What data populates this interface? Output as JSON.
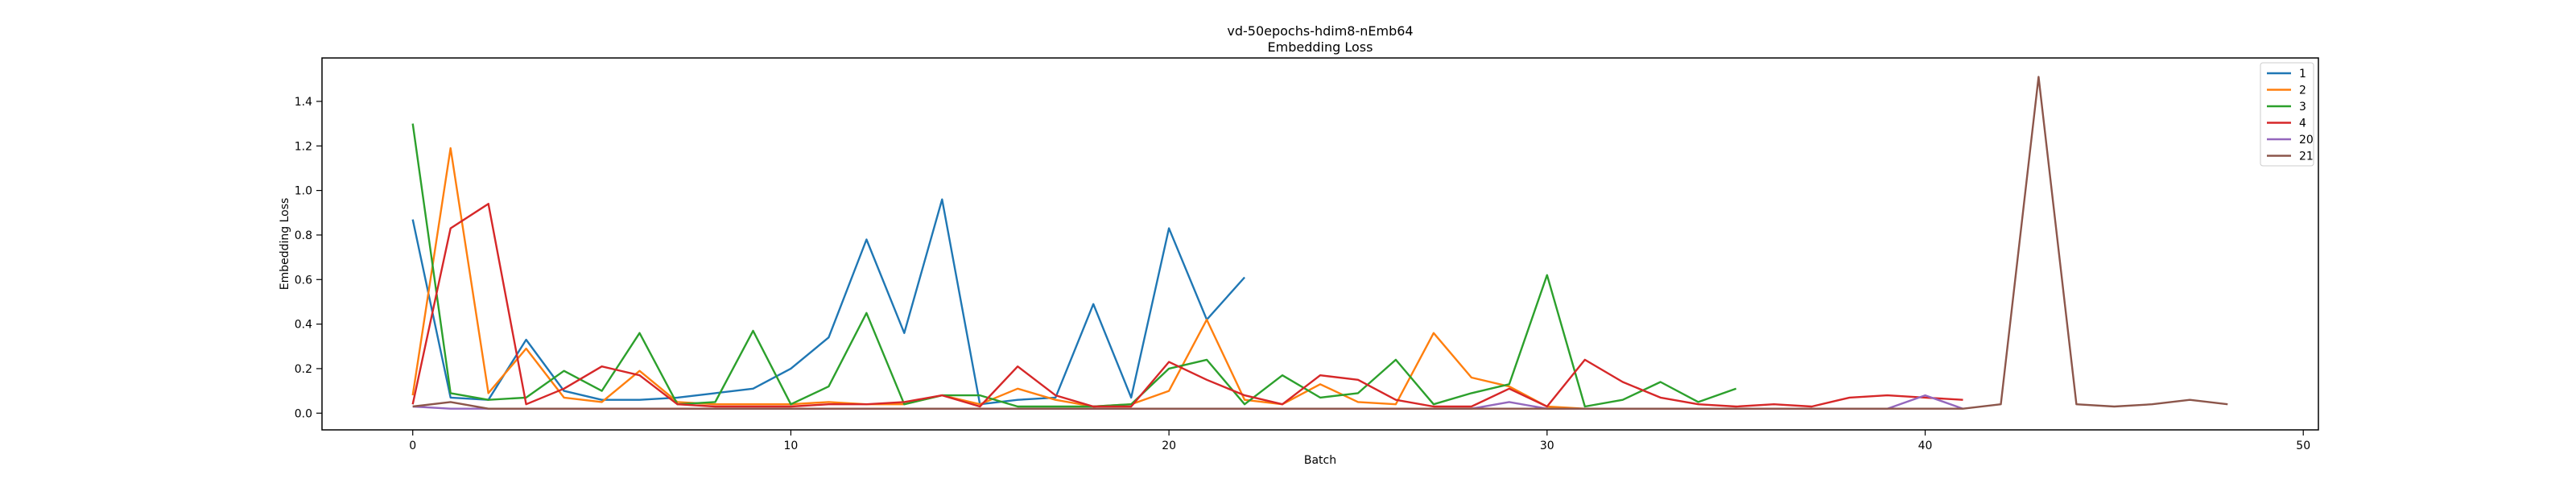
{
  "chart_data": {
    "type": "line",
    "title": "vd-50epochs-hdim8-nEmb64",
    "subtitle": "Embedding Loss",
    "xlabel": "Batch",
    "ylabel": "Embedding Loss",
    "xlim": [
      -2.4,
      50.4
    ],
    "ylim": [
      -0.075,
      1.595
    ],
    "xticks": [
      0,
      10,
      20,
      30,
      40,
      50
    ],
    "yticks": [
      0.0,
      0.2,
      0.4,
      0.6,
      0.8,
      1.0,
      1.2,
      1.4
    ],
    "grid": false,
    "legend_position": "top-right",
    "series": [
      {
        "name": "1",
        "color": "#1f77b4",
        "x": [
          0,
          1,
          2,
          3,
          4,
          5,
          6,
          7,
          8,
          9,
          10,
          11,
          12,
          13,
          14,
          15,
          16,
          17,
          18,
          19,
          20,
          21,
          22
        ],
        "values": [
          0.87,
          0.07,
          0.06,
          0.33,
          0.1,
          0.06,
          0.06,
          0.07,
          0.09,
          0.11,
          0.2,
          0.34,
          0.78,
          0.36,
          0.96,
          0.04,
          0.06,
          0.07,
          0.49,
          0.07,
          0.83,
          0.42,
          0.61
        ]
      },
      {
        "name": "2",
        "color": "#ff7f0e",
        "x": [
          0,
          1,
          2,
          3,
          4,
          5,
          6,
          7,
          8,
          9,
          10,
          11,
          12,
          13,
          14,
          15,
          16,
          17,
          18,
          19,
          20,
          21,
          22,
          23,
          24,
          25,
          26,
          27,
          28,
          29,
          30,
          31,
          32,
          33,
          34,
          35
        ],
        "values": [
          0.08,
          1.19,
          0.09,
          0.29,
          0.07,
          0.05,
          0.19,
          0.05,
          0.04,
          0.04,
          0.04,
          0.05,
          0.04,
          0.04,
          0.08,
          0.04,
          0.11,
          0.06,
          0.03,
          0.04,
          0.1,
          0.42,
          0.06,
          0.04,
          0.13,
          0.05,
          0.04,
          0.36,
          0.16,
          0.12,
          0.03,
          0.02,
          0.02,
          0.02,
          0.02,
          0.02
        ]
      },
      {
        "name": "3",
        "color": "#2ca02c",
        "x": [
          0,
          1,
          2,
          3,
          4,
          5,
          6,
          7,
          8,
          9,
          10,
          11,
          12,
          13,
          14,
          15,
          16,
          17,
          18,
          19,
          20,
          21,
          22,
          23,
          24,
          25,
          26,
          27,
          28,
          29,
          30,
          31,
          32,
          33,
          34,
          35
        ],
        "values": [
          1.3,
          0.09,
          0.06,
          0.07,
          0.19,
          0.1,
          0.36,
          0.04,
          0.05,
          0.37,
          0.04,
          0.12,
          0.45,
          0.04,
          0.08,
          0.08,
          0.03,
          0.03,
          0.03,
          0.04,
          0.2,
          0.24,
          0.04,
          0.17,
          0.07,
          0.09,
          0.24,
          0.04,
          0.09,
          0.13,
          0.62,
          0.03,
          0.06,
          0.14,
          0.05,
          0.11
        ]
      },
      {
        "name": "4",
        "color": "#d62728",
        "x": [
          0,
          1,
          2,
          3,
          4,
          5,
          6,
          7,
          8,
          9,
          10,
          11,
          12,
          13,
          14,
          15,
          16,
          17,
          18,
          19,
          20,
          21,
          22,
          23,
          24,
          25,
          26,
          27,
          28,
          29,
          30,
          31,
          32,
          33,
          34,
          35,
          36,
          37,
          38,
          39,
          40,
          41
        ],
        "values": [
          0.04,
          0.83,
          0.94,
          0.04,
          0.11,
          0.21,
          0.17,
          0.04,
          0.03,
          0.03,
          0.03,
          0.04,
          0.04,
          0.05,
          0.08,
          0.03,
          0.21,
          0.08,
          0.03,
          0.03,
          0.23,
          0.15,
          0.08,
          0.04,
          0.17,
          0.15,
          0.06,
          0.03,
          0.03,
          0.11,
          0.03,
          0.24,
          0.14,
          0.07,
          0.04,
          0.03,
          0.04,
          0.03,
          0.07,
          0.08,
          0.07,
          0.06
        ]
      },
      {
        "name": "20",
        "color": "#9467bd",
        "x": [
          0,
          1,
          2,
          3,
          4,
          5,
          6,
          7,
          8,
          9,
          10,
          11,
          12,
          13,
          14,
          15,
          16,
          17,
          18,
          19,
          20,
          21,
          22,
          23,
          24,
          25,
          26,
          27,
          28,
          29,
          30,
          31,
          32,
          33,
          34,
          35,
          36,
          37,
          38,
          39,
          40,
          41
        ],
        "values": [
          0.03,
          0.02,
          0.02,
          0.02,
          0.02,
          0.02,
          0.02,
          0.02,
          0.02,
          0.02,
          0.02,
          0.02,
          0.02,
          0.02,
          0.02,
          0.02,
          0.02,
          0.02,
          0.02,
          0.02,
          0.02,
          0.02,
          0.02,
          0.02,
          0.02,
          0.02,
          0.02,
          0.02,
          0.02,
          0.05,
          0.02,
          0.02,
          0.02,
          0.02,
          0.02,
          0.02,
          0.02,
          0.02,
          0.02,
          0.02,
          0.08,
          0.02
        ]
      },
      {
        "name": "21",
        "color": "#8c564b",
        "x": [
          0,
          1,
          2,
          3,
          4,
          5,
          6,
          7,
          8,
          9,
          10,
          11,
          12,
          13,
          14,
          15,
          16,
          17,
          18,
          19,
          20,
          21,
          22,
          23,
          24,
          25,
          26,
          27,
          28,
          29,
          30,
          31,
          32,
          33,
          34,
          35,
          36,
          37,
          38,
          39,
          40,
          41,
          42,
          43,
          44,
          45,
          46,
          47,
          48
        ],
        "values": [
          0.03,
          0.05,
          0.02,
          0.02,
          0.02,
          0.02,
          0.02,
          0.02,
          0.02,
          0.02,
          0.02,
          0.02,
          0.02,
          0.02,
          0.02,
          0.02,
          0.02,
          0.02,
          0.02,
          0.02,
          0.02,
          0.02,
          0.02,
          0.02,
          0.02,
          0.02,
          0.02,
          0.02,
          0.02,
          0.02,
          0.02,
          0.02,
          0.02,
          0.02,
          0.02,
          0.02,
          0.02,
          0.02,
          0.02,
          0.02,
          0.02,
          0.02,
          0.04,
          1.51,
          0.04,
          0.03,
          0.04,
          0.06,
          0.04
        ]
      }
    ]
  }
}
